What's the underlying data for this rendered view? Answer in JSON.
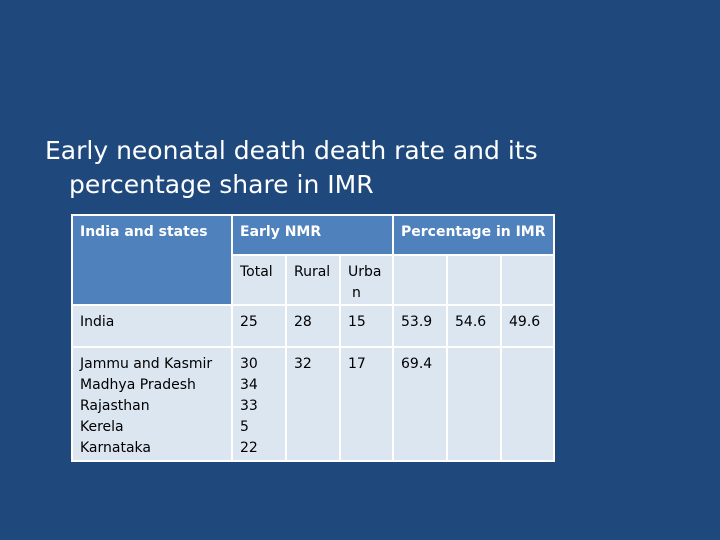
{
  "title_line1": "Early neonatal death death rate and its",
  "title_line2": "percentage share in IMR",
  "table": {
    "header": {
      "col1": "India and states",
      "early_nmr": "Early NMR",
      "pct_imr": "Percentage in IMR"
    },
    "subheader": {
      "total": "Total",
      "rural": "Rural",
      "urban_line1": "Urba",
      "urban_line2": "n"
    },
    "row_india": {
      "name": "India",
      "total": "25",
      "rural": "28",
      "urban": "15",
      "p1": "53.9",
      "p2": "54.6",
      "p3": "49.6"
    },
    "row_states": {
      "names": [
        "Jammu and Kasmir",
        "Madhya Pradesh",
        "Rajasthan",
        "Kerela",
        "Karnataka"
      ],
      "totals": [
        "30",
        "34",
        "33",
        "5",
        "22"
      ],
      "rural": "32",
      "urban": "17",
      "p1": "69.4"
    }
  }
}
